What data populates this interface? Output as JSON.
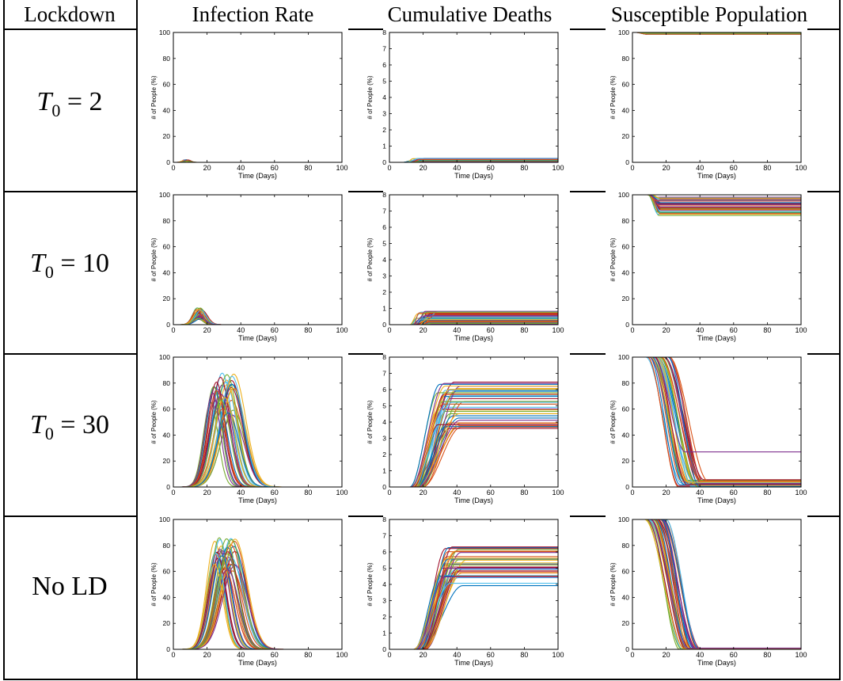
{
  "table": {
    "header_lockdown": "Lockdown",
    "columns": [
      {
        "title": "Infection Rate"
      },
      {
        "title": "Cumulative Deaths"
      },
      {
        "title": "Susceptible Population"
      }
    ],
    "rows": [
      {
        "label_var": "T",
        "label_sub": "0",
        "label_rest": " = 2"
      },
      {
        "label_var": "T",
        "label_sub": "0",
        "label_rest": " = 10"
      },
      {
        "label_var": "T",
        "label_sub": "0",
        "label_rest": " = 30"
      },
      {
        "label_var": "",
        "label_sub": "",
        "label_rest": "No LD"
      }
    ]
  },
  "chart_data": [
    {
      "type": "line",
      "title": "",
      "xlabel": "Time (Days)",
      "ylabel": "# of People (%)",
      "xlim": [
        0,
        100
      ],
      "x_ticks": [
        0,
        20,
        40,
        60,
        80,
        100
      ],
      "panels": [
        {
          "row": "T0 = 2",
          "column": "Infection Rate",
          "ylim": [
            0,
            100
          ],
          "y_ticks": [
            0,
            20,
            40,
            60,
            80,
            100
          ],
          "series_count": 40,
          "peak_day_range": [
            6,
            9
          ],
          "peak_value_range": [
            0.5,
            2
          ]
        },
        {
          "row": "T0 = 2",
          "column": "Cumulative Deaths",
          "ylim": [
            0,
            8
          ],
          "y_ticks": [
            0,
            1,
            2,
            3,
            4,
            5,
            6,
            7,
            8
          ],
          "series_count": 40,
          "rise_start_day": 8,
          "final_value_range": [
            0,
            0.25
          ]
        },
        {
          "row": "T0 = 2",
          "column": "Susceptible Population",
          "ylim": [
            0,
            100
          ],
          "y_ticks": [
            0,
            20,
            40,
            60,
            80,
            100
          ],
          "series_count": 40,
          "drop_day": 5,
          "final_value_range": [
            98.5,
            100
          ]
        },
        {
          "row": "T0 = 10",
          "column": "Infection Rate",
          "ylim": [
            0,
            100
          ],
          "y_ticks": [
            0,
            20,
            40,
            60,
            80,
            100
          ],
          "series_count": 40,
          "peak_day_range": [
            14,
            17
          ],
          "peak_value_range": [
            4,
            13
          ]
        },
        {
          "row": "T0 = 10",
          "column": "Cumulative Deaths",
          "ylim": [
            0,
            8
          ],
          "y_ticks": [
            0,
            1,
            2,
            3,
            4,
            5,
            6,
            7,
            8
          ],
          "series_count": 40,
          "rise_start_day": 12,
          "final_value_range": [
            0.05,
            0.85
          ]
        },
        {
          "row": "T0 = 10",
          "column": "Susceptible Population",
          "ylim": [
            0,
            100
          ],
          "y_ticks": [
            0,
            20,
            40,
            60,
            80,
            100
          ],
          "series_count": 40,
          "drop_day": 12,
          "final_value_range": [
            84,
            99
          ]
        },
        {
          "row": "T0 = 30",
          "column": "Infection Rate",
          "ylim": [
            0,
            100
          ],
          "y_ticks": [
            0,
            20,
            40,
            60,
            80,
            100
          ],
          "series_count": 40,
          "peak_day_range": [
            22,
            36
          ],
          "peak_value_range": [
            55,
            88
          ]
        },
        {
          "row": "T0 = 30",
          "column": "Cumulative Deaths",
          "ylim": [
            0,
            8
          ],
          "y_ticks": [
            0,
            1,
            2,
            3,
            4,
            5,
            6,
            7,
            8
          ],
          "series_count": 40,
          "rise_start_day": 12,
          "final_value_range": [
            3.6,
            6.7
          ],
          "flat_series": 1
        },
        {
          "row": "T0 = 30",
          "column": "Susceptible Population",
          "ylim": [
            0,
            100
          ],
          "y_ticks": [
            0,
            20,
            40,
            60,
            80,
            100
          ],
          "series_count": 40,
          "drop_day_range": [
            18,
            34
          ],
          "final_value_range": [
            0,
            6
          ],
          "outliers": [
            {
              "final": 27
            },
            {
              "final": 100
            }
          ]
        },
        {
          "row": "No LD",
          "column": "Infection Rate",
          "ylim": [
            0,
            100
          ],
          "y_ticks": [
            0,
            20,
            40,
            60,
            80,
            100
          ],
          "series_count": 40,
          "peak_day_range": [
            24,
            37
          ],
          "peak_value_range": [
            60,
            86
          ]
        },
        {
          "row": "No LD",
          "column": "Cumulative Deaths",
          "ylim": [
            0,
            8
          ],
          "y_ticks": [
            0,
            1,
            2,
            3,
            4,
            5,
            6,
            7,
            8
          ],
          "series_count": 40,
          "rise_start_day": 14,
          "final_value_range": [
            3.9,
            6.4
          ],
          "flat_series": 1
        },
        {
          "row": "No LD",
          "column": "Susceptible Population",
          "ylim": [
            0,
            100
          ],
          "y_ticks": [
            0,
            20,
            40,
            60,
            80,
            100
          ],
          "series_count": 40,
          "drop_day_range": [
            18,
            30
          ],
          "final_value_range": [
            0,
            1
          ],
          "outliers": [
            {
              "final": 100
            }
          ]
        }
      ]
    }
  ],
  "colors": {
    "series": [
      "#0072bd",
      "#d95319",
      "#edb120",
      "#7e2f8e",
      "#77ac30",
      "#4dbeee",
      "#a2142f"
    ]
  }
}
